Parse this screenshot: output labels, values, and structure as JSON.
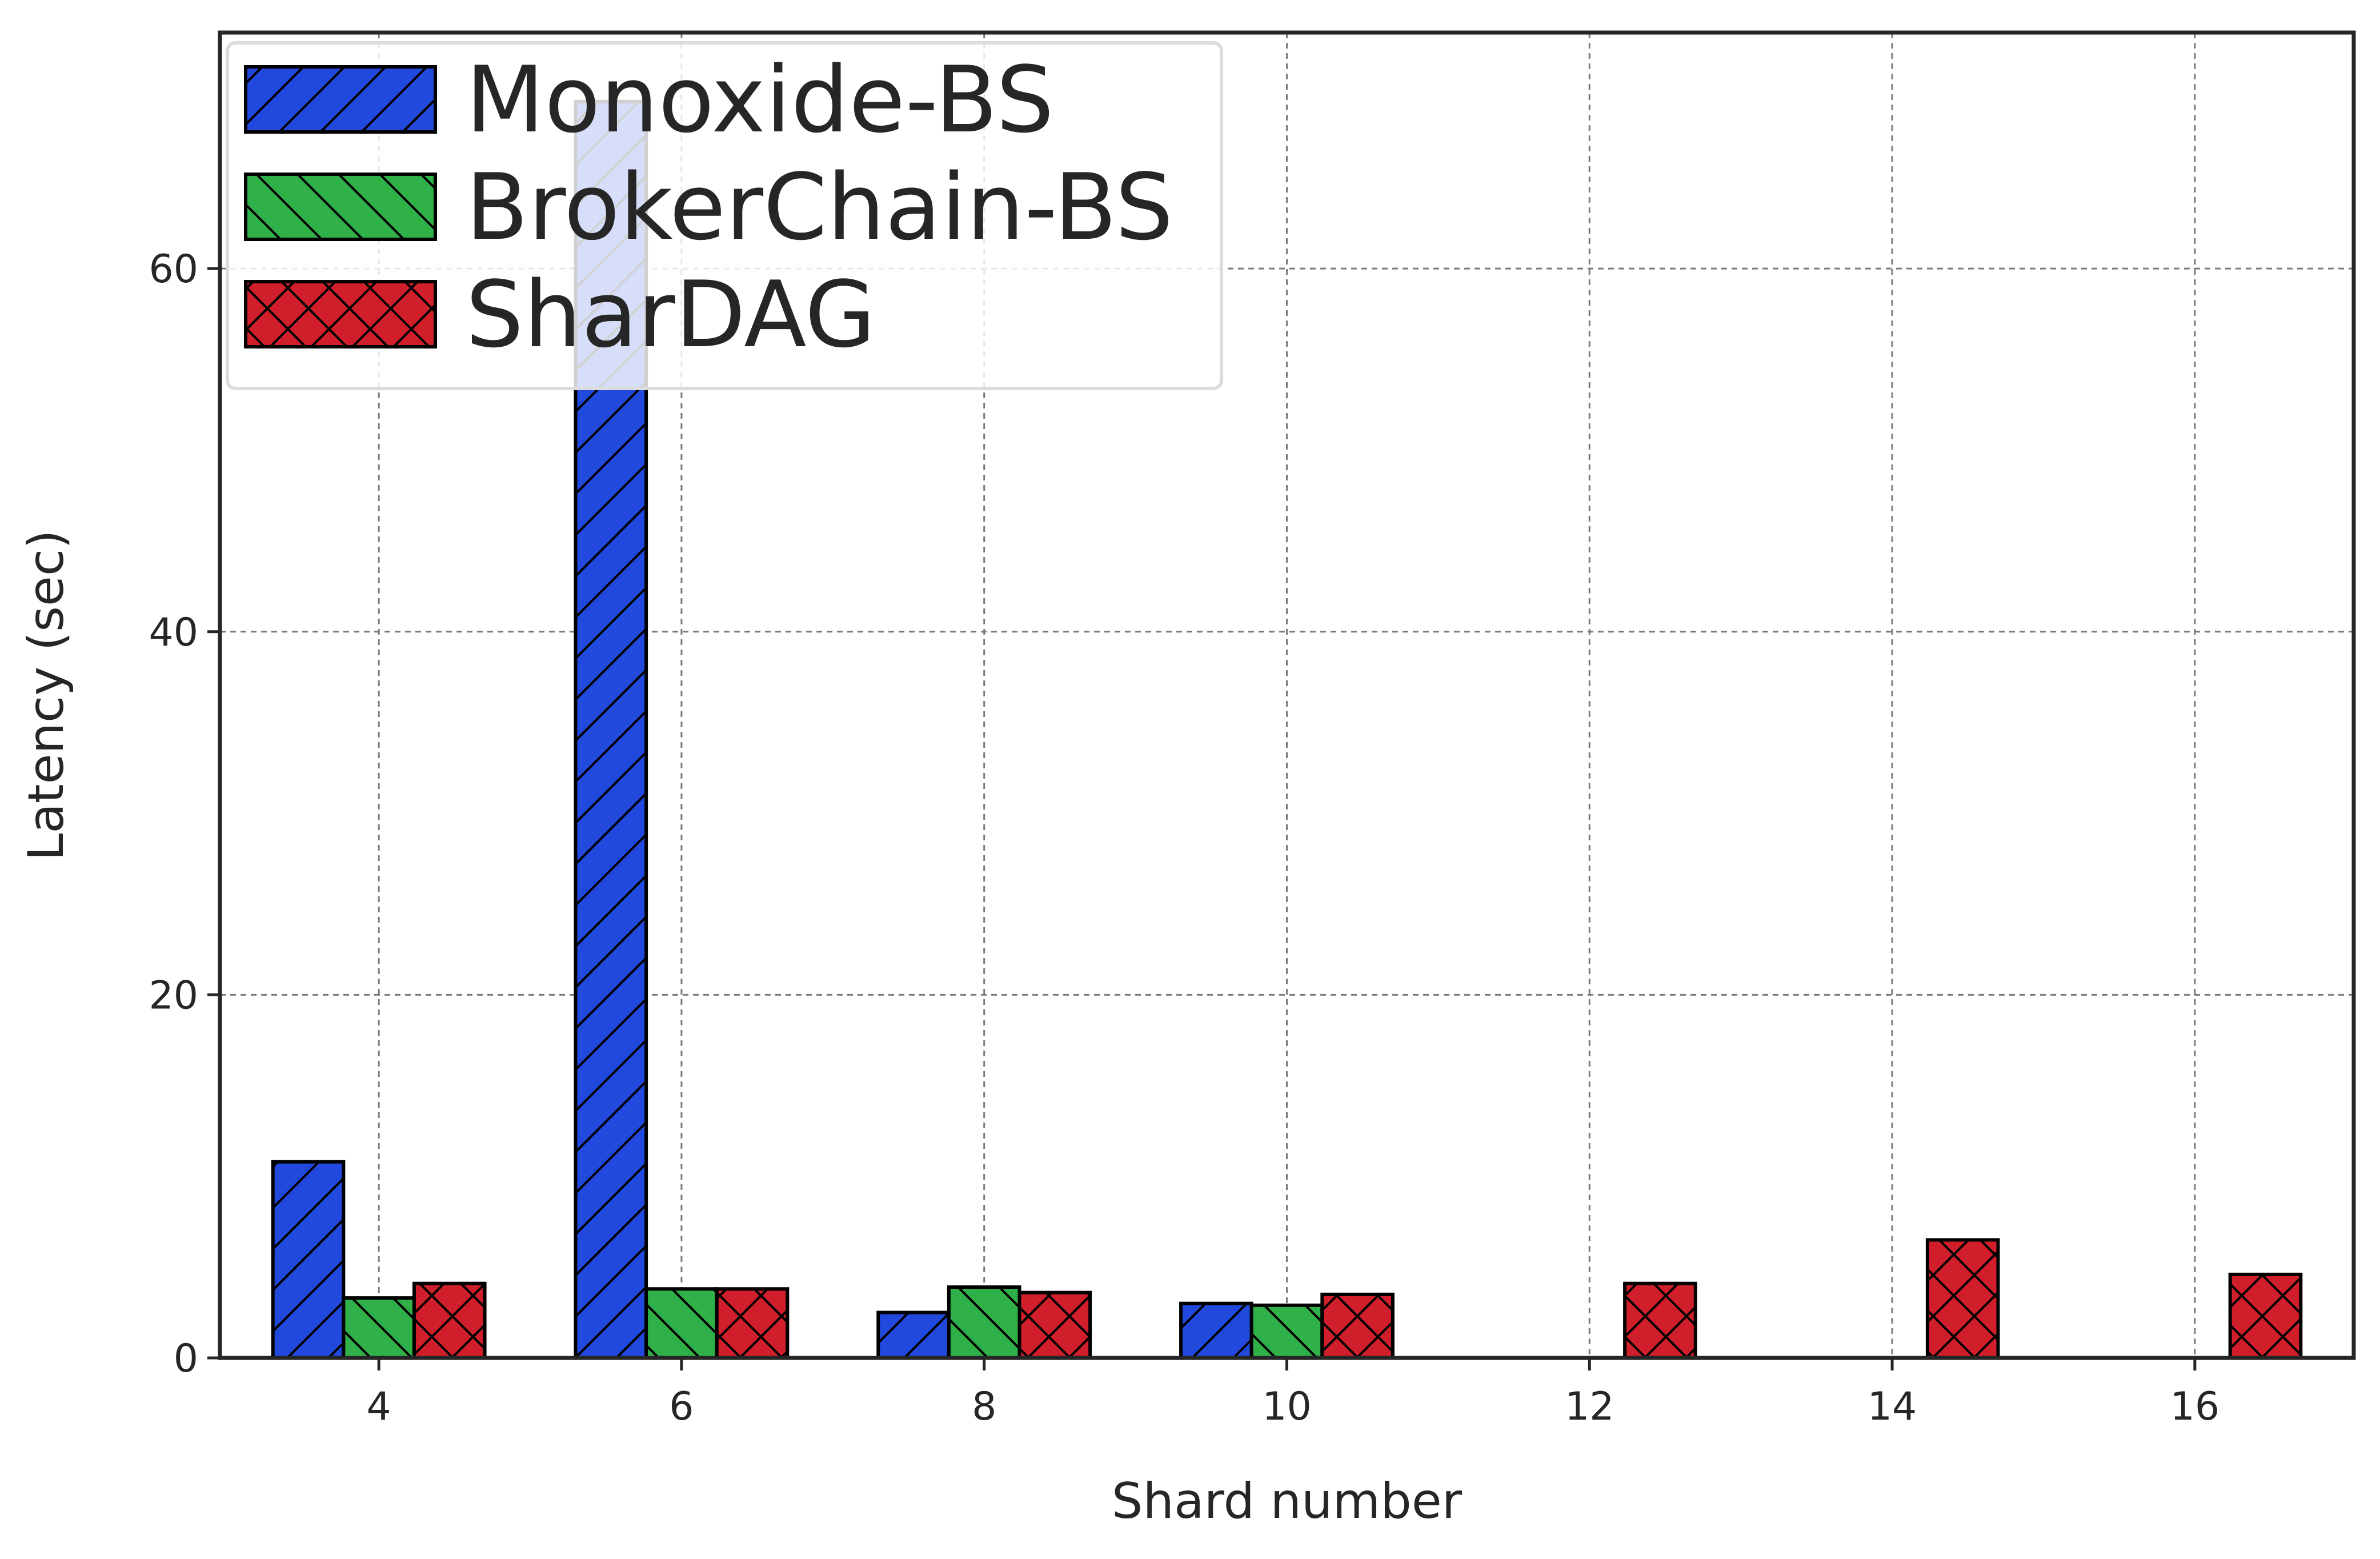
{
  "chart_data": {
    "type": "bar",
    "title": "",
    "xlabel": "Shard number",
    "ylabel": "Latency (sec)",
    "x_categories": [
      4,
      6,
      8,
      10,
      12,
      14,
      16
    ],
    "xlim": [
      2.95,
      17.05
    ],
    "ylim": [
      0,
      73
    ],
    "xticks": [
      "4",
      "6",
      "8",
      "10",
      "12",
      "14",
      "16"
    ],
    "yticks": [
      "0",
      "20",
      "40",
      "60"
    ],
    "grid": true,
    "legend_position": "top-left",
    "series": [
      {
        "name": "Monoxide-BS",
        "color": "#2249de",
        "hatch": "/",
        "values": [
          10.8,
          69.2,
          2.5,
          3.0,
          null,
          null,
          null
        ]
      },
      {
        "name": "BrokerChain-BS",
        "color": "#2fb048",
        "hatch": "\\",
        "values": [
          3.3,
          3.8,
          3.9,
          2.9,
          null,
          null,
          null
        ]
      },
      {
        "name": "SharDAG",
        "color": "#d01f2a",
        "hatch": "x",
        "values": [
          4.1,
          3.8,
          3.6,
          3.5,
          4.1,
          6.5,
          4.6
        ]
      }
    ]
  }
}
